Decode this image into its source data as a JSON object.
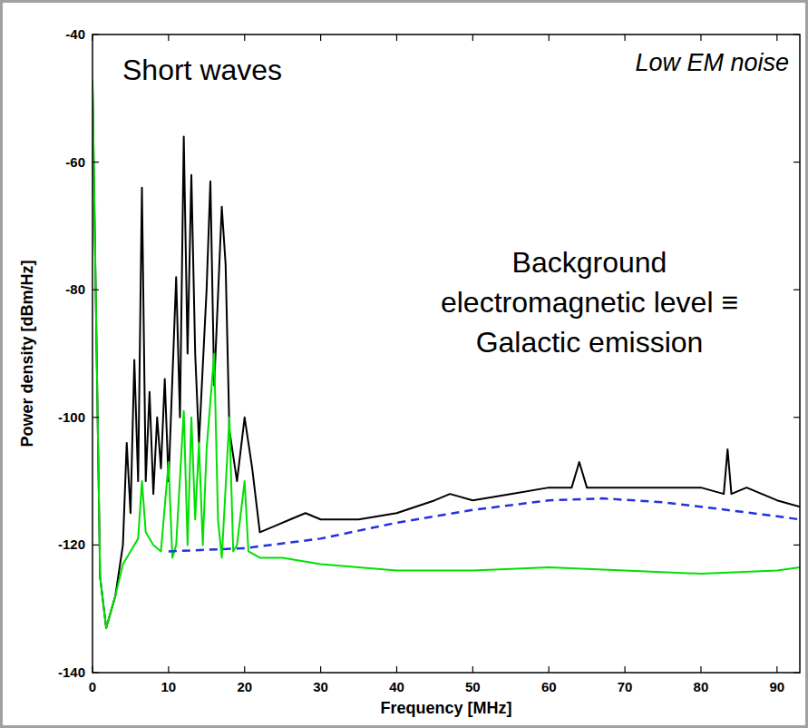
{
  "chart_data": {
    "type": "line",
    "annotations": [
      "Short waves",
      "Low EM noise",
      "Background electromagnetic level ≡ Galactic emission"
    ],
    "x_label": "Frequency [MHz]",
    "y_label": "Power density [dBm/Hz]",
    "xlim": [
      0,
      93
    ],
    "ylim": [
      -140,
      -40
    ],
    "xticks": [
      0,
      10,
      20,
      30,
      40,
      50,
      60,
      70,
      80,
      90
    ],
    "yticks": [
      -140,
      -120,
      -100,
      -80,
      -60,
      -40
    ],
    "grid": false,
    "series": [
      {
        "color": "#000000",
        "line_style": "solid",
        "x": [
          0,
          1,
          1.8,
          3,
          4,
          4.5,
          5,
          5.5,
          6,
          6.5,
          7,
          7.5,
          8,
          8.5,
          9,
          9.5,
          10,
          11,
          11.5,
          12,
          12.5,
          13,
          13.5,
          14,
          15,
          15.5,
          16,
          17,
          17.5,
          18,
          19,
          20,
          21,
          22,
          24,
          26,
          28,
          30,
          35,
          40,
          45,
          47,
          50,
          55,
          60,
          63,
          64,
          65,
          70,
          75,
          80,
          83,
          83.5,
          84,
          86,
          90,
          93
        ],
        "values": [
          -48,
          -125,
          -133,
          -128,
          -120,
          -104,
          -115,
          -91,
          -110,
          -64,
          -110,
          -96,
          -112,
          -100,
          -108,
          -94,
          -110,
          -78,
          -100,
          -56,
          -90,
          -62,
          -90,
          -104,
          -80,
          -63,
          -95,
          -67,
          -76,
          -102,
          -110,
          -100,
          -108,
          -118,
          -117,
          -116,
          -115,
          -116,
          -116,
          -115,
          -113,
          -112,
          -113,
          -112,
          -111,
          -111,
          -107,
          -111,
          -111,
          -111,
          -111,
          -112,
          -105,
          -112,
          -111,
          -113,
          -114
        ]
      },
      {
        "color": "#00e000",
        "line_style": "solid",
        "x": [
          0,
          1,
          1.8,
          3,
          4,
          5,
          6,
          6.5,
          7,
          8,
          9,
          10,
          10.5,
          11,
          12,
          12.5,
          13,
          13.5,
          14,
          14.5,
          15,
          16,
          16.5,
          17,
          18,
          18.5,
          19,
          20,
          20.5,
          22,
          25,
          30,
          40,
          50,
          60,
          70,
          80,
          90,
          93
        ],
        "values": [
          -47,
          -125,
          -133,
          -128,
          -123,
          -121,
          -119,
          -110,
          -118,
          -120,
          -121,
          -107,
          -122,
          -120,
          -99,
          -120,
          -100,
          -116,
          -104,
          -120,
          -105,
          -90,
          -116,
          -122,
          -100,
          -121,
          -120,
          -110,
          -121,
          -122,
          -122,
          -123,
          -124,
          -124,
          -123.5,
          -124,
          -124.5,
          -124,
          -123.5
        ]
      },
      {
        "color": "#2233dd",
        "line_style": "dashed",
        "x": [
          10,
          20,
          30,
          40,
          50,
          60,
          67,
          75,
          80,
          90,
          93
        ],
        "values": [
          -121,
          -120.5,
          -119,
          -116.5,
          -114.5,
          -113,
          -112.7,
          -113.3,
          -114,
          -115.5,
          -116
        ]
      }
    ]
  }
}
